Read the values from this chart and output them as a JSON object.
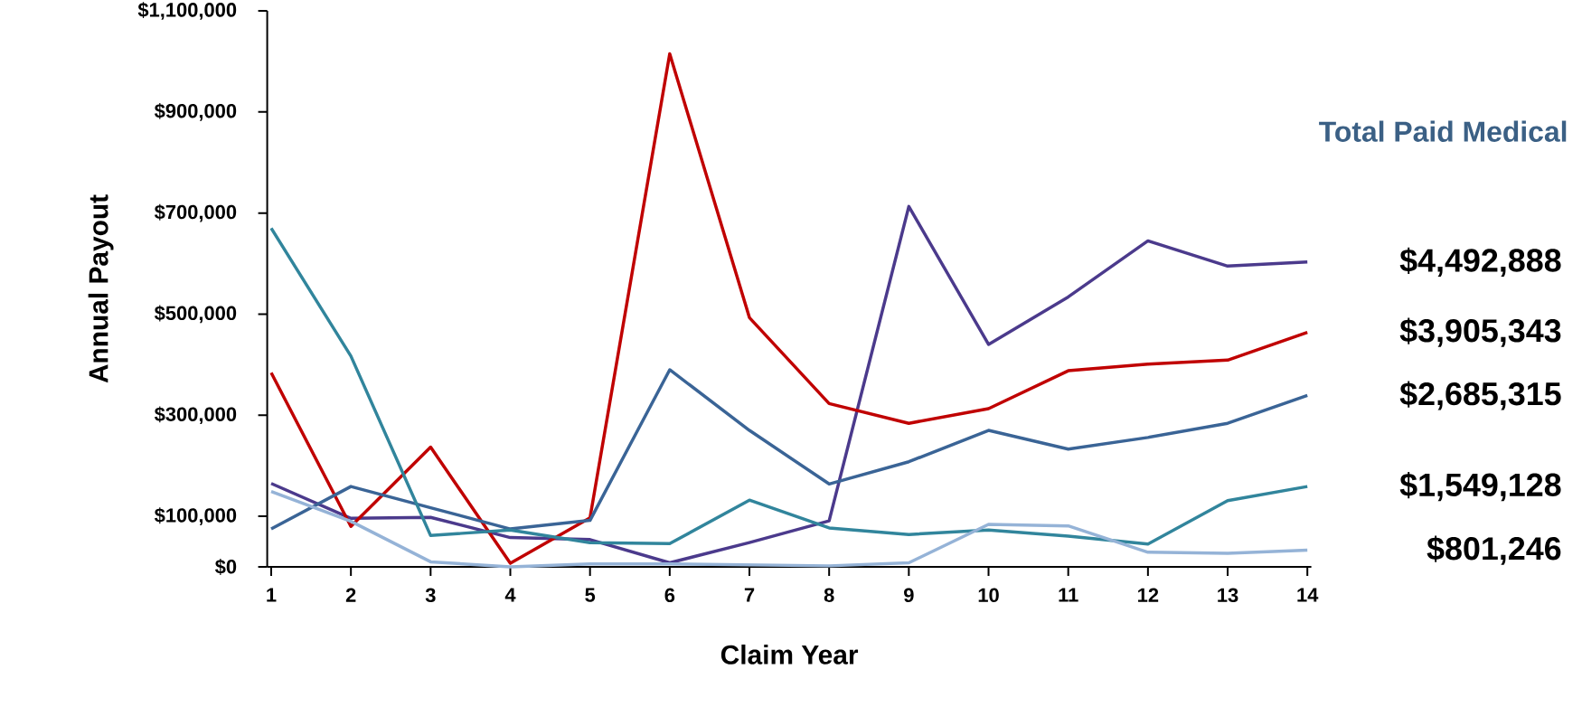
{
  "chart_data": {
    "type": "line",
    "xlabel": "Claim Year",
    "ylabel": "Annual Payout",
    "legend_title": "Total Paid Medical",
    "categories": [
      "1",
      "2",
      "3",
      "4",
      "5",
      "6",
      "7",
      "8",
      "9",
      "10",
      "11",
      "12",
      "13",
      "14"
    ],
    "ylim": [
      0,
      1100000
    ],
    "yticks": [
      {
        "value": 0,
        "label": "$0"
      },
      {
        "value": 100000,
        "label": "$100,000"
      },
      {
        "value": 300000,
        "label": "$300,000"
      },
      {
        "value": 500000,
        "label": "$500,000"
      },
      {
        "value": 700000,
        "label": "$700,000"
      },
      {
        "value": 900000,
        "label": "$900,000"
      },
      {
        "value": 1100000,
        "label": "$1,100,000"
      }
    ],
    "series": [
      {
        "name": "$4,492,888",
        "color": "#4b3a8c",
        "values": [
          165000,
          96000,
          98000,
          58000,
          54000,
          8000,
          48000,
          91000,
          713000,
          440000,
          534000,
          645000,
          595000,
          603000
        ]
      },
      {
        "name": "$3,905,343",
        "color": "#c00000",
        "values": [
          384000,
          80000,
          237000,
          7000,
          97000,
          1015000,
          493000,
          323000,
          284000,
          313000,
          388000,
          401000,
          409000,
          464000
        ]
      },
      {
        "name": "$2,685,315",
        "color": "#3a6496",
        "values": [
          75000,
          159000,
          117000,
          75000,
          92000,
          390000,
          270000,
          164000,
          208000,
          270000,
          233000,
          256000,
          284000,
          339000
        ]
      },
      {
        "name": "$1,549,128",
        "color": "#31859c",
        "values": [
          670000,
          417000,
          62000,
          73000,
          48000,
          46000,
          132000,
          77000,
          64000,
          73000,
          61000,
          45000,
          131000,
          159000
        ]
      },
      {
        "name": "$801,246",
        "color": "#95b3d7",
        "values": [
          149000,
          90000,
          10000,
          0,
          6000,
          6000,
          4000,
          2000,
          8000,
          84000,
          81000,
          29000,
          27000,
          33000
        ]
      }
    ],
    "line_style": "solid"
  }
}
